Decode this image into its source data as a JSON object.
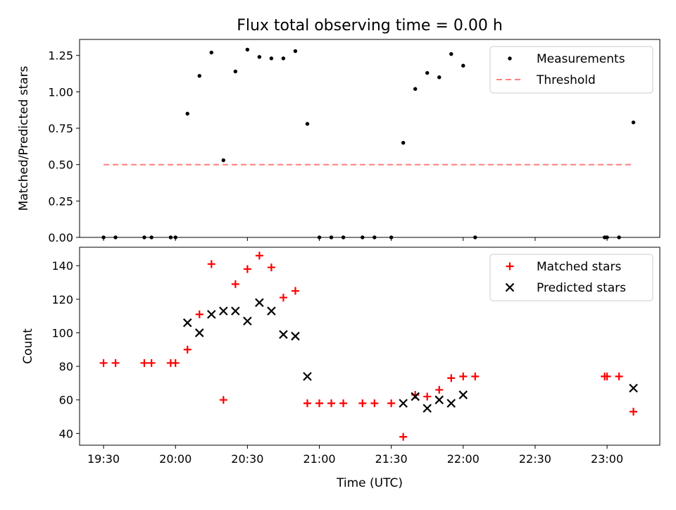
{
  "title": "Flux total observing time = 0.00 h",
  "xlabel": "Time (UTC)",
  "x_ticks": [
    "19:30",
    "20:00",
    "20:30",
    "21:00",
    "21:30",
    "22:00",
    "22:30",
    "23:00"
  ],
  "x_tick_minutes": [
    1170,
    1200,
    1230,
    1260,
    1290,
    1320,
    1350,
    1380
  ],
  "x_range_minutes": [
    1160,
    1402
  ],
  "chart_data": [
    {
      "type": "scatter",
      "title": "Flux total observing time = 0.00 h",
      "ylabel": "Matched/Predicted stars",
      "xlabel": "",
      "ylim": [
        0,
        1.36
      ],
      "yticks": [
        "0.00",
        "0.25",
        "0.50",
        "0.75",
        "1.00",
        "1.25"
      ],
      "ytick_values": [
        0,
        0.25,
        0.5,
        0.75,
        1.0,
        1.25
      ],
      "grid": false,
      "legend": "top-right",
      "series": [
        {
          "name": "Measurements",
          "marker": "dot",
          "color": "#000000",
          "points": [
            [
              "19:30",
              0.0
            ],
            [
              "19:35",
              0.0
            ],
            [
              "19:47",
              0.0
            ],
            [
              "19:50",
              0.0
            ],
            [
              "19:58",
              0.0
            ],
            [
              "20:00",
              0.0
            ],
            [
              "20:05",
              0.85
            ],
            [
              "20:10",
              1.11
            ],
            [
              "20:15",
              1.27
            ],
            [
              "20:20",
              0.53
            ],
            [
              "20:25",
              1.14
            ],
            [
              "20:30",
              1.29
            ],
            [
              "20:35",
              1.24
            ],
            [
              "20:40",
              1.23
            ],
            [
              "20:45",
              1.23
            ],
            [
              "20:50",
              1.28
            ],
            [
              "20:55",
              0.78
            ],
            [
              "21:00",
              0.0
            ],
            [
              "21:05",
              0.0
            ],
            [
              "21:10",
              0.0
            ],
            [
              "21:18",
              0.0
            ],
            [
              "21:23",
              0.0
            ],
            [
              "21:30",
              0.0
            ],
            [
              "21:35",
              0.65
            ],
            [
              "21:40",
              1.02
            ],
            [
              "21:45",
              1.13
            ],
            [
              "21:50",
              1.1
            ],
            [
              "21:55",
              1.26
            ],
            [
              "22:00",
              1.18
            ],
            [
              "22:05",
              0.0
            ],
            [
              "22:59",
              0.0
            ],
            [
              "23:00",
              0.0
            ],
            [
              "23:05",
              0.0
            ],
            [
              "23:11",
              0.79
            ]
          ]
        },
        {
          "name": "Threshold",
          "style": "dashed",
          "color": "#ff7f7f",
          "points": [
            [
              "19:30",
              0.5
            ],
            [
              "23:11",
              0.5
            ]
          ]
        }
      ]
    },
    {
      "type": "scatter",
      "title": "",
      "ylabel": "Count",
      "xlabel": "Time (UTC)",
      "ylim": [
        33,
        151
      ],
      "yticks": [
        "40",
        "60",
        "80",
        "100",
        "120",
        "140"
      ],
      "ytick_values": [
        40,
        60,
        80,
        100,
        120,
        140
      ],
      "grid": false,
      "legend": "top-right",
      "series": [
        {
          "name": "Matched stars",
          "marker": "plus",
          "color": "#ff0000",
          "points": [
            [
              "19:30",
              82
            ],
            [
              "19:35",
              82
            ],
            [
              "19:47",
              82
            ],
            [
              "19:50",
              82
            ],
            [
              "19:58",
              82
            ],
            [
              "20:00",
              82
            ],
            [
              "20:05",
              90
            ],
            [
              "20:10",
              111
            ],
            [
              "20:15",
              141
            ],
            [
              "20:20",
              60
            ],
            [
              "20:25",
              129
            ],
            [
              "20:30",
              138
            ],
            [
              "20:35",
              146
            ],
            [
              "20:40",
              139
            ],
            [
              "20:45",
              121
            ],
            [
              "20:50",
              125
            ],
            [
              "20:55",
              58
            ],
            [
              "21:00",
              58
            ],
            [
              "21:05",
              58
            ],
            [
              "21:10",
              58
            ],
            [
              "21:18",
              58
            ],
            [
              "21:23",
              58
            ],
            [
              "21:30",
              58
            ],
            [
              "21:35",
              38
            ],
            [
              "21:40",
              63
            ],
            [
              "21:45",
              62
            ],
            [
              "21:50",
              66
            ],
            [
              "21:55",
              73
            ],
            [
              "22:00",
              74
            ],
            [
              "22:05",
              74
            ],
            [
              "22:59",
              74
            ],
            [
              "23:00",
              74
            ],
            [
              "23:05",
              74
            ],
            [
              "23:11",
              53
            ]
          ]
        },
        {
          "name": "Predicted stars",
          "marker": "x",
          "color": "#000000",
          "points": [
            [
              "20:05",
              106
            ],
            [
              "20:10",
              100
            ],
            [
              "20:15",
              111
            ],
            [
              "20:20",
              113
            ],
            [
              "20:25",
              113
            ],
            [
              "20:30",
              107
            ],
            [
              "20:35",
              118
            ],
            [
              "20:40",
              113
            ],
            [
              "20:45",
              99
            ],
            [
              "20:50",
              98
            ],
            [
              "20:55",
              74
            ],
            [
              "21:35",
              58
            ],
            [
              "21:40",
              62
            ],
            [
              "21:45",
              55
            ],
            [
              "21:50",
              60
            ],
            [
              "21:55",
              58
            ],
            [
              "22:00",
              63
            ],
            [
              "23:11",
              67
            ]
          ]
        }
      ]
    }
  ]
}
